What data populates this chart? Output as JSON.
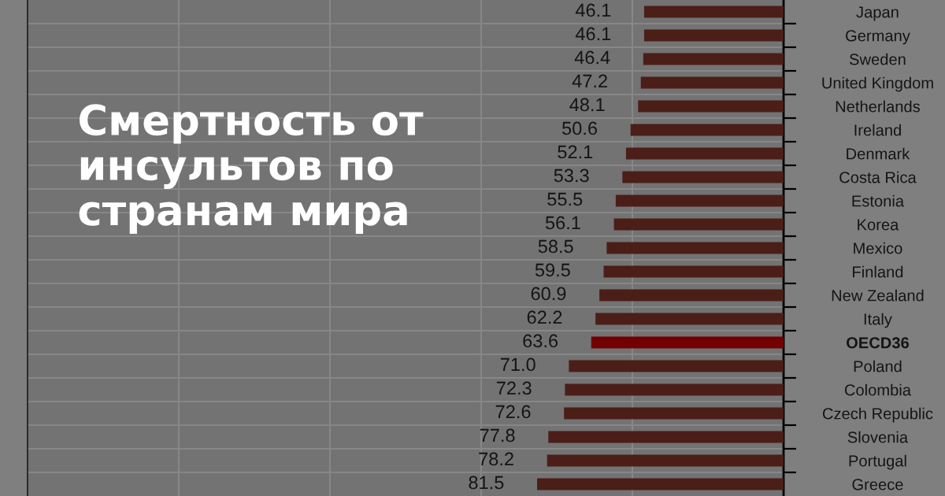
{
  "chart_data": {
    "type": "bar",
    "orientation": "horizontal",
    "title": "Смертность от инсультов по странам мира",
    "categories": [
      "Japan",
      "Germany",
      "Sweden",
      "United Kingdom",
      "Netherlands",
      "Ireland",
      "Denmark",
      "Costa Rica",
      "Estonia",
      "Korea",
      "Mexico",
      "Finland",
      "New Zealand",
      "Italy",
      "OECD36",
      "Poland",
      "Colombia",
      "Czech Republic",
      "Slovenia",
      "Portugal",
      "Greece"
    ],
    "values": [
      46.1,
      46.1,
      46.4,
      47.2,
      48.1,
      50.6,
      52.1,
      53.3,
      55.5,
      56.1,
      58.5,
      59.5,
      60.9,
      62.2,
      63.6,
      71.0,
      72.3,
      72.6,
      77.8,
      78.2,
      81.5
    ],
    "value_labels": [
      "46.1",
      "46.1",
      "46.4",
      "47.2",
      "48.1",
      "50.6",
      "52.1",
      "53.3",
      "55.5",
      "56.1",
      "58.5",
      "59.5",
      "60.9",
      "62.2",
      "63.6",
      "71.0",
      "72.3",
      "72.6",
      "77.8",
      "78.2",
      "81.5"
    ],
    "colors": [
      "#4b1e18",
      "#4b1e18",
      "#4b1e18",
      "#4b1e18",
      "#4b1e18",
      "#4b1e18",
      "#4b1e18",
      "#4b1e18",
      "#4b1e18",
      "#4b1e18",
      "#4b1e18",
      "#4b1e18",
      "#4b1e18",
      "#4b1e18",
      "#720000",
      "#4b1e18",
      "#4b1e18",
      "#4b1e18",
      "#4b1e18",
      "#4b1e18",
      "#4b1e18"
    ],
    "xlim": [
      250,
      0
    ],
    "xticks": [
      {
        "value": 0,
        "label": null
      },
      {
        "value": 50,
        "label": null
      },
      {
        "value": 100,
        "label": null
      },
      {
        "value": 150,
        "label": null
      },
      {
        "value": 200,
        "label": null
      },
      {
        "value": 250,
        "label": null
      }
    ],
    "grid": true,
    "tick_labels": "y"
  }
}
